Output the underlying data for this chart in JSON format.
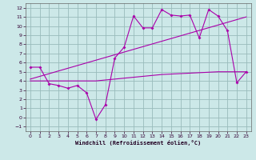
{
  "background_color": "#cce8e8",
  "line_color": "#aa00aa",
  "grid_color": "#99bbbb",
  "xlabel": "Windchill (Refroidissement éolien,°C)",
  "xlim": [
    -0.5,
    23.5
  ],
  "ylim": [
    -1.5,
    12.5
  ],
  "yticks": [
    -1,
    0,
    1,
    2,
    3,
    4,
    5,
    6,
    7,
    8,
    9,
    10,
    11,
    12
  ],
  "xticks": [
    0,
    1,
    2,
    3,
    4,
    5,
    6,
    7,
    8,
    9,
    10,
    11,
    12,
    13,
    14,
    15,
    16,
    17,
    18,
    19,
    20,
    21,
    22,
    23
  ],
  "series1_x": [
    0,
    1,
    2,
    3,
    4,
    5,
    6,
    7,
    8,
    9,
    10,
    11,
    12,
    13,
    14,
    15,
    16,
    17,
    18,
    19,
    20,
    21,
    22,
    23
  ],
  "series1_y": [
    5.5,
    5.5,
    3.7,
    3.5,
    3.2,
    3.5,
    2.7,
    -0.2,
    1.4,
    6.5,
    7.7,
    11.1,
    9.8,
    9.8,
    11.8,
    11.2,
    11.1,
    11.2,
    8.7,
    11.8,
    11.1,
    9.5,
    3.8,
    5.0
  ],
  "series2_x": [
    0,
    1,
    2,
    3,
    4,
    5,
    6,
    7,
    8,
    9,
    10,
    11,
    12,
    13,
    14,
    15,
    16,
    17,
    18,
    19,
    20,
    21,
    22,
    23
  ],
  "series2_y": [
    4.0,
    4.0,
    4.0,
    4.0,
    4.0,
    4.0,
    4.0,
    4.0,
    4.1,
    4.2,
    4.3,
    4.4,
    4.5,
    4.6,
    4.7,
    4.75,
    4.8,
    4.85,
    4.9,
    4.95,
    5.0,
    5.0,
    5.0,
    5.0
  ],
  "series3_x": [
    0,
    23
  ],
  "series3_y": [
    4.2,
    11.0
  ]
}
